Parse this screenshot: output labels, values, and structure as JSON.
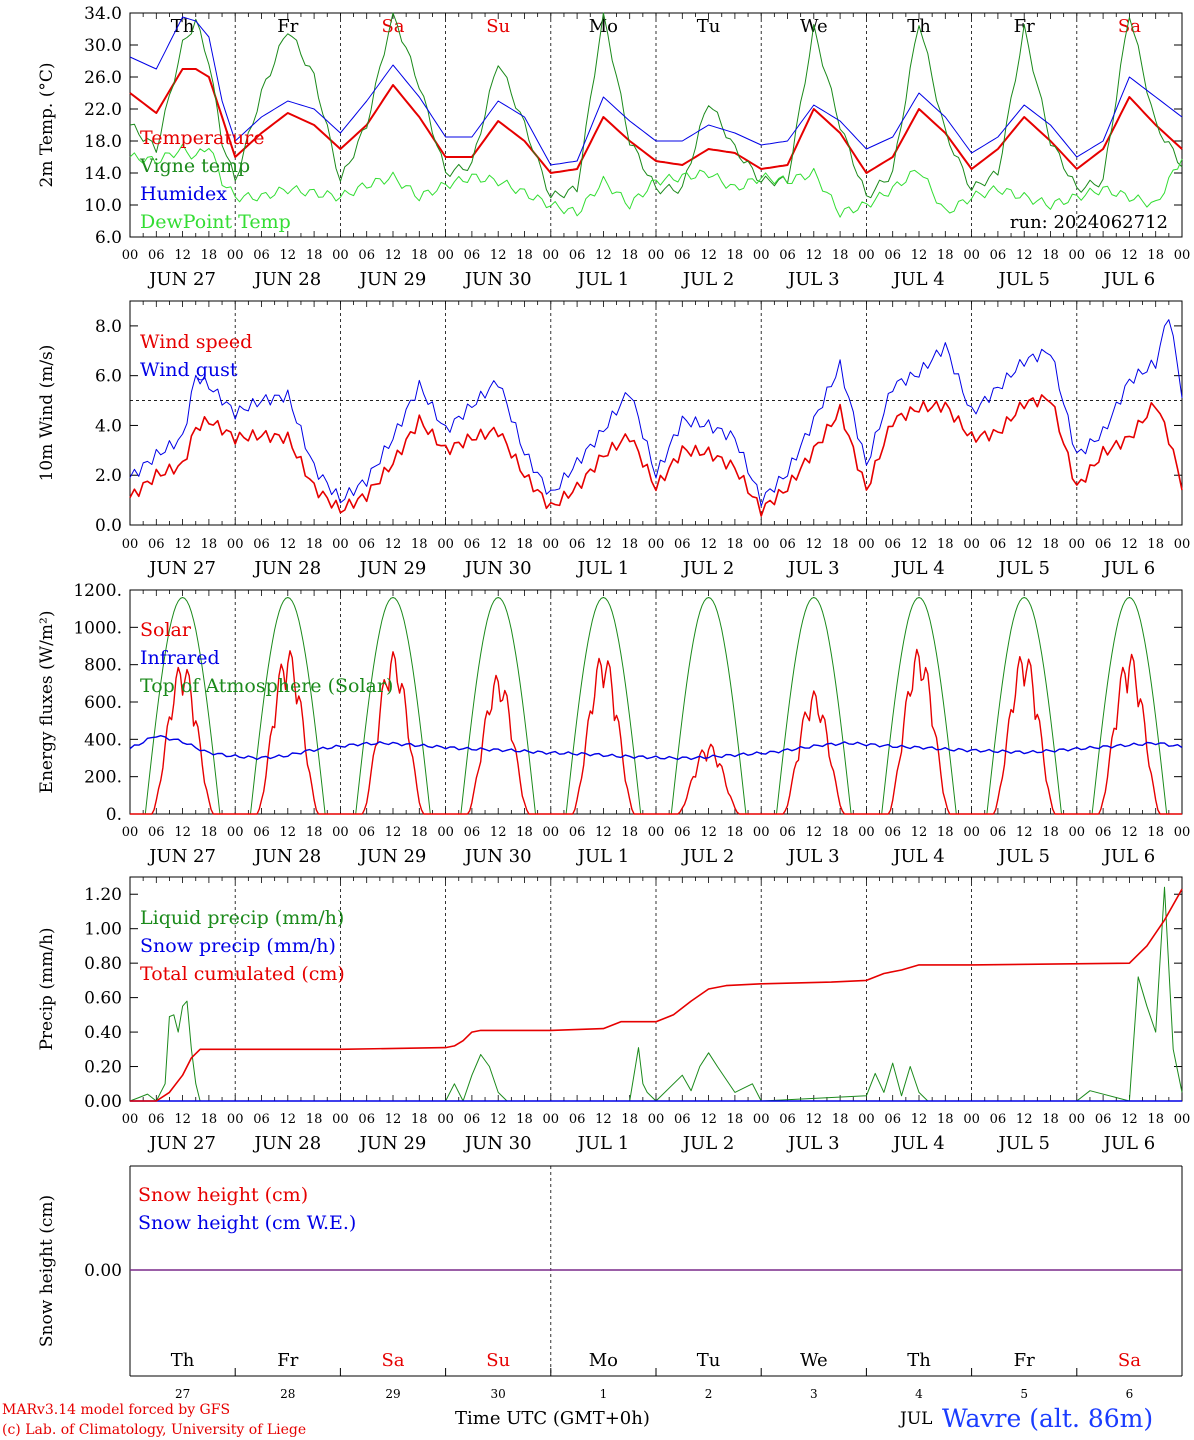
{
  "colors": {
    "temperature": "#e60000",
    "vigne": "#1b8a1b",
    "humidex": "#0000e6",
    "dewpoint": "#33dd33",
    "sunday_saturday": "#e60000",
    "weekday": "#000000",
    "snow_blue": "#0000e6",
    "snow_red": "#e60000",
    "station": "#1a3cff"
  },
  "days": {
    "x_dates": [
      "JUN 27",
      "JUN 28",
      "JUN 29",
      "JUN 30",
      "JUL  1",
      "JUL  2",
      "JUL  3",
      "JUL  4",
      "JUL  5",
      "JUL  6"
    ],
    "weekdays": [
      "Th",
      "Fr",
      "Sa",
      "Su",
      "Mo",
      "Tu",
      "We",
      "Th",
      "Fr",
      "Sa"
    ],
    "weekday_red": [
      false,
      false,
      true,
      true,
      false,
      false,
      false,
      false,
      false,
      true
    ],
    "day_numbers": [
      "27",
      "28",
      "29",
      "30",
      "1",
      "2",
      "3",
      "4",
      "5",
      "6"
    ],
    "hour_labels": [
      "00",
      "06",
      "12",
      "18"
    ],
    "last_hour_label": "00"
  },
  "footer": {
    "model_line": "MARv3.14 model forced by GFS",
    "lab_line": "(c) Lab. of Climatology, University of Liege",
    "time_axis_label": "Time UTC (GMT+0h)",
    "month_label": "JUL",
    "station": "Wavre (alt. 86m)"
  },
  "chart_data": [
    {
      "id": "temperature",
      "type": "line",
      "ylabel": "2m Temp. (°C)",
      "ylim": [
        6.0,
        34.0
      ],
      "yticks": [
        "6.0",
        "10.0",
        "14.0",
        "18.0",
        "22.0",
        "26.0",
        "30.0",
        "34.0"
      ],
      "annotation": "run: 2024062712",
      "x_hours": [
        0,
        6,
        12,
        15,
        18,
        21,
        24,
        30,
        36,
        42,
        48,
        54,
        60,
        66,
        72,
        78,
        84,
        90,
        96,
        102,
        108,
        114,
        120,
        126,
        132,
        138,
        144,
        150,
        156,
        162,
        168,
        174,
        180,
        186,
        192,
        198,
        204,
        210,
        216,
        222,
        228,
        234,
        240
      ],
      "series": [
        {
          "name": "Temperature",
          "color_key": "temperature",
          "values": [
            24,
            21.5,
            27,
            27,
            26,
            21,
            16,
            19,
            21.5,
            20,
            17,
            20,
            25,
            21,
            16,
            16,
            20.5,
            18,
            14,
            14.5,
            21,
            18,
            15.5,
            15,
            17,
            16.5,
            14.5,
            15,
            22,
            19,
            14,
            16,
            22,
            19,
            14.5,
            17,
            21,
            18,
            14.5,
            17,
            23.5,
            20,
            17
          ]
        },
        {
          "name": "Vigne temp",
          "color_key": "vigne",
          "values": [
            20,
            17,
            30,
            33,
            28,
            18,
            13,
            24,
            32,
            26,
            13,
            20,
            34,
            25,
            14,
            15,
            28,
            20,
            11,
            12,
            34,
            18,
            12,
            12,
            23,
            17,
            13,
            13,
            32,
            20,
            11,
            14,
            33,
            19,
            12,
            14,
            32,
            18,
            12,
            13,
            34,
            20,
            15
          ]
        },
        {
          "name": "Humidex",
          "color_key": "humidex",
          "values": [
            28.5,
            27,
            33.5,
            33,
            31,
            23,
            18,
            21,
            23,
            22,
            19,
            23,
            27.5,
            23.5,
            18.5,
            18.5,
            23,
            21,
            15,
            15.5,
            23.5,
            20.5,
            18,
            18,
            20,
            19,
            17.5,
            18,
            22.5,
            20.5,
            17,
            18.5,
            24,
            21,
            16.5,
            18.5,
            22.5,
            20,
            16,
            18,
            26,
            23.5,
            21
          ]
        },
        {
          "name": "DewPoint Temp",
          "color_key": "dewpoint",
          "values": [
            16,
            15.5,
            17,
            16,
            17.5,
            13,
            11,
            11,
            12,
            11.5,
            11,
            12.5,
            13.5,
            11,
            12.5,
            13.5,
            13,
            11.5,
            10,
            9,
            13,
            10,
            13,
            13.5,
            14,
            12,
            13.5,
            13,
            14,
            9,
            10,
            12,
            14.5,
            9,
            11,
            12,
            11,
            10,
            11,
            12,
            11,
            10,
            16
          ]
        }
      ]
    },
    {
      "id": "wind",
      "type": "line",
      "ylabel": "10m Wind (m/s)",
      "ylim": [
        0.0,
        9.0
      ],
      "yticks": [
        "0.0",
        "2.0",
        "4.0",
        "6.0",
        "8.0"
      ],
      "reference_line": 5.0,
      "x_hours": [
        0,
        6,
        12,
        15,
        18,
        24,
        30,
        36,
        42,
        48,
        54,
        60,
        66,
        72,
        78,
        84,
        90,
        96,
        102,
        108,
        114,
        120,
        126,
        132,
        138,
        144,
        150,
        156,
        162,
        168,
        174,
        180,
        186,
        192,
        198,
        204,
        210,
        216,
        222,
        228,
        234,
        237,
        240
      ],
      "series": [
        {
          "name": "Wind speed",
          "color_key": "temperature",
          "values": [
            1.1,
            2.0,
            2.4,
            3.9,
            4.2,
            3.5,
            3.6,
            3.5,
            1.5,
            0.6,
            1.2,
            2.5,
            4.2,
            3.0,
            3.5,
            3.8,
            2.0,
            0.7,
            1.5,
            2.8,
            3.6,
            1.5,
            3.0,
            2.9,
            2.3,
            0.6,
            1.5,
            3.0,
            4.6,
            1.4,
            4.2,
            4.7,
            4.8,
            3.5,
            3.7,
            4.9,
            5.1,
            1.5,
            2.9,
            3.5,
            4.9,
            3.5,
            1.6
          ]
        },
        {
          "name": "Wind gust",
          "color_key": "humidex",
          "values": [
            1.9,
            2.8,
            3.5,
            6.0,
            5.6,
            4.5,
            5.0,
            5.2,
            2.3,
            1.0,
            1.8,
            3.5,
            5.6,
            3.8,
            4.8,
            5.8,
            2.9,
            1.2,
            2.5,
            3.8,
            5.4,
            2.0,
            4.2,
            4.0,
            3.5,
            1.0,
            2.1,
            4.2,
            6.4,
            2.4,
            5.6,
            6.1,
            7.2,
            4.5,
            5.5,
            6.6,
            7.0,
            2.8,
            3.7,
            5.8,
            6.5,
            8.5,
            5.3
          ]
        }
      ]
    },
    {
      "id": "energy",
      "type": "line",
      "ylabel": "Energy fluxes (W/m²)",
      "ylim": [
        0,
        1200
      ],
      "yticks": [
        "0.",
        "200.",
        "400.",
        "600.",
        "800.",
        "1000.",
        "1200."
      ],
      "x_hours": [
        0,
        4,
        6,
        8,
        10,
        12,
        14,
        16,
        18,
        20,
        22,
        24
      ],
      "toa_peak": 1160,
      "solar_daily_peaks": [
        820,
        890,
        870,
        750,
        870,
        380,
        660,
        890,
        880,
        870
      ],
      "infrared_levels": [
        350,
        420,
        390,
        330,
        310,
        300,
        310,
        340,
        360,
        375,
        380,
        370,
        360,
        350,
        345,
        340,
        330,
        325,
        320,
        310,
        305,
        300,
        300,
        310,
        320,
        330,
        350,
        370,
        380,
        370,
        360,
        355,
        345,
        340,
        335,
        330,
        340,
        350,
        360,
        370,
        380,
        360
      ],
      "series": [
        {
          "name": "Solar",
          "color_key": "temperature"
        },
        {
          "name": "Infrared",
          "color_key": "humidex"
        },
        {
          "name": "Top of Atmosphere (Solar)",
          "color_key": "vigne"
        }
      ]
    },
    {
      "id": "precip",
      "type": "line",
      "ylabel": "Precip (mm/h)",
      "ylim": [
        0.0,
        1.3
      ],
      "yticks": [
        "0.00",
        "0.20",
        "0.40",
        "0.60",
        "0.80",
        "1.00",
        "1.20"
      ],
      "liquid_hours": [
        0,
        2,
        4,
        6,
        8,
        9,
        10,
        11,
        12,
        13,
        14,
        15,
        16,
        18,
        20,
        72,
        74,
        76,
        78,
        80,
        82,
        84,
        86,
        114,
        116,
        117,
        118,
        120,
        126,
        128,
        130,
        132,
        134,
        138,
        142,
        144,
        168,
        170,
        172,
        174,
        176,
        178,
        180,
        182,
        216,
        219,
        228,
        230,
        232,
        234,
        236,
        238,
        240
      ],
      "liquid_values": [
        0,
        0.02,
        0.04,
        0,
        0.1,
        0.49,
        0.5,
        0.4,
        0.55,
        0.58,
        0.3,
        0.1,
        0,
        0,
        0,
        0,
        0.1,
        0,
        0.15,
        0.27,
        0.2,
        0.05,
        0,
        0,
        0.31,
        0.1,
        0.05,
        0,
        0.15,
        0.06,
        0.2,
        0.28,
        0.2,
        0.05,
        0.1,
        0,
        0.03,
        0.16,
        0.05,
        0.22,
        0.03,
        0.2,
        0.05,
        0,
        0,
        0.06,
        0,
        0.72,
        0.55,
        0.4,
        1.24,
        0.3,
        0.05
      ],
      "cumulated_hours": [
        0,
        6,
        9,
        12,
        14,
        16,
        20,
        48,
        72,
        74,
        76,
        78,
        80,
        96,
        108,
        112,
        120,
        124,
        128,
        132,
        136,
        144,
        160,
        168,
        172,
        176,
        180,
        192,
        228,
        232,
        236,
        240
      ],
      "cumulated_values": [
        0,
        0,
        0.05,
        0.15,
        0.25,
        0.3,
        0.3,
        0.3,
        0.31,
        0.32,
        0.35,
        0.4,
        0.41,
        0.41,
        0.42,
        0.46,
        0.46,
        0.5,
        0.58,
        0.65,
        0.67,
        0.68,
        0.69,
        0.7,
        0.74,
        0.76,
        0.79,
        0.79,
        0.8,
        0.9,
        1.05,
        1.23
      ],
      "series": [
        {
          "name": "Liquid precip (mm/h)",
          "color_key": "vigne"
        },
        {
          "name": "Snow precip (mm/h)",
          "color_key": "humidex"
        },
        {
          "name": "Total cumulated (cm)",
          "color_key": "temperature"
        }
      ]
    },
    {
      "id": "snow",
      "type": "line",
      "ylabel": "Snow height (cm)",
      "yticks": [
        "0.00"
      ],
      "value": 0.0,
      "series": [
        {
          "name": "Snow height (cm)",
          "color_key": "snow_red"
        },
        {
          "name": "Snow height (cm W.E.)",
          "color_key": "snow_blue"
        }
      ]
    }
  ]
}
